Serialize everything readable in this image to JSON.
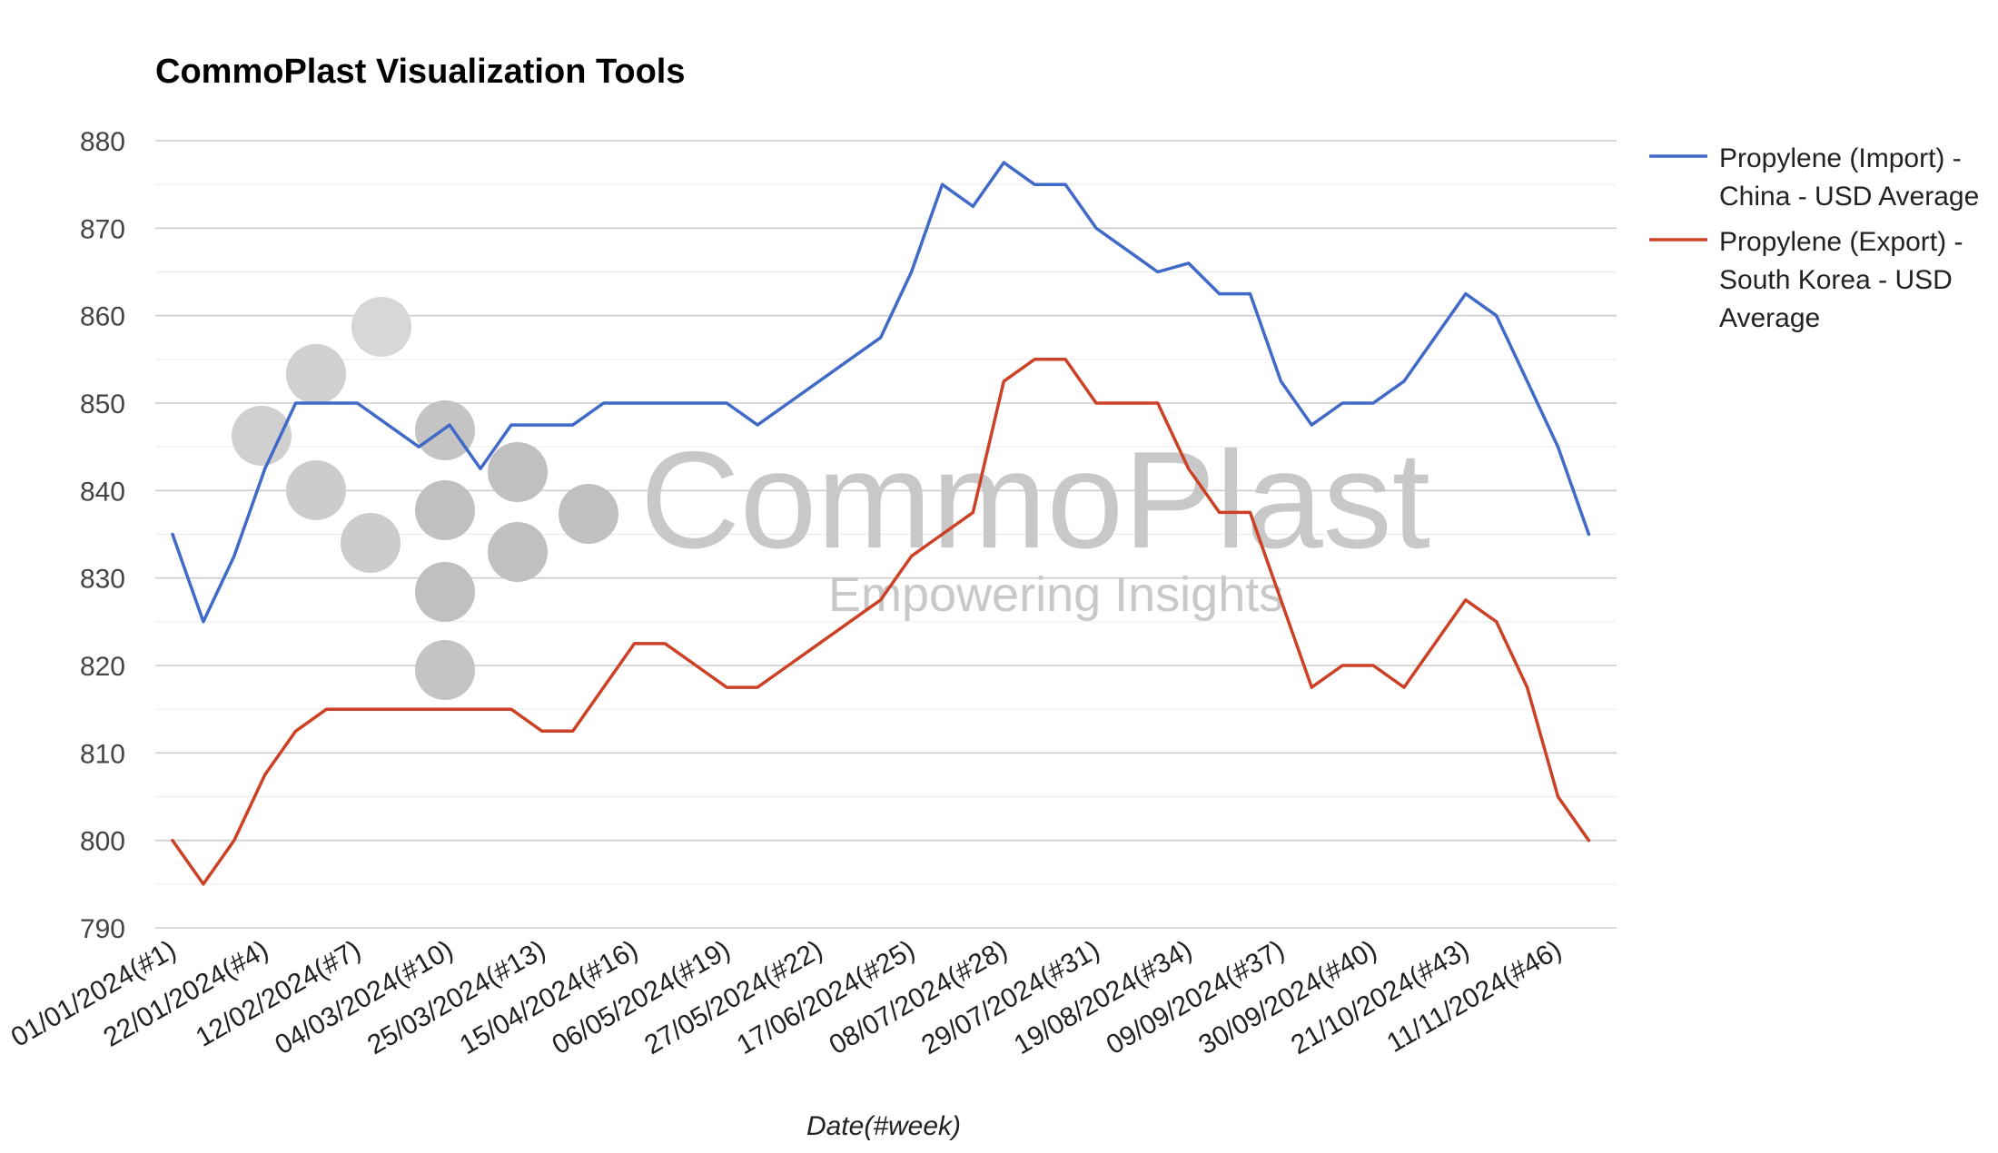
{
  "header": {
    "title": "CommoPlast Visualization Tools"
  },
  "watermark": {
    "brand": "CommoPlast",
    "tagline": "Empowering Insights",
    "icon": "dot-cluster-logo"
  },
  "colors": {
    "series_1": "#4169c8",
    "series_2": "#cc4125",
    "grid": "#cccccc",
    "minor_grid": "#eeeeee"
  },
  "chart_data": {
    "type": "line",
    "title": "CommoPlast Visualization Tools",
    "xlabel": "Date(#week)",
    "ylabel": "",
    "ylim": [
      790,
      880
    ],
    "yticks": [
      790,
      800,
      810,
      820,
      830,
      840,
      850,
      860,
      870,
      880
    ],
    "grid": true,
    "legend_position": "right",
    "x": [
      "01/01/2024(#1)",
      "08/01/2024(#2)",
      "15/01/2024(#3)",
      "22/01/2024(#4)",
      "29/01/2024(#5)",
      "05/02/2024(#6)",
      "12/02/2024(#7)",
      "19/02/2024(#8)",
      "26/02/2024(#9)",
      "04/03/2024(#10)",
      "11/03/2024(#11)",
      "18/03/2024(#12)",
      "25/03/2024(#13)",
      "01/04/2024(#14)",
      "08/04/2024(#15)",
      "15/04/2024(#16)",
      "22/04/2024(#17)",
      "29/04/2024(#18)",
      "06/05/2024(#19)",
      "13/05/2024(#20)",
      "20/05/2024(#21)",
      "27/05/2024(#22)",
      "03/06/2024(#23)",
      "10/06/2024(#24)",
      "17/06/2024(#25)",
      "24/06/2024(#26)",
      "01/07/2024(#27)",
      "08/07/2024(#28)",
      "15/07/2024(#29)",
      "22/07/2024(#30)",
      "29/07/2024(#31)",
      "05/08/2024(#32)",
      "12/08/2024(#33)",
      "19/08/2024(#34)",
      "26/08/2024(#35)",
      "02/09/2024(#36)",
      "09/09/2024(#37)",
      "16/09/2024(#38)",
      "23/09/2024(#39)",
      "30/09/2024(#40)",
      "07/10/2024(#41)",
      "14/10/2024(#42)",
      "21/10/2024(#43)",
      "28/10/2024(#44)",
      "04/11/2024(#45)",
      "11/11/2024(#46)",
      "18/11/2024(#47)"
    ],
    "xtick_labels": [
      "01/01/2024(#1)",
      "22/01/2024(#4)",
      "12/02/2024(#7)",
      "04/03/2024(#10)",
      "25/03/2024(#13)",
      "15/04/2024(#16)",
      "06/05/2024(#19)",
      "27/05/2024(#22)",
      "17/06/2024(#25)",
      "08/07/2024(#28)",
      "29/07/2024(#31)",
      "19/08/2024(#34)",
      "09/09/2024(#37)",
      "30/09/2024(#40)",
      "21/10/2024(#43)",
      "11/11/2024(#46)"
    ],
    "series": [
      {
        "name": "Propylene (Import) - China - USD Average",
        "legend_lines": [
          "Propylene (Import) -",
          "China - USD Average"
        ],
        "color": "#4169c8",
        "values": [
          835,
          825,
          832.5,
          842.5,
          850,
          850,
          850,
          847.5,
          845,
          847.5,
          842.5,
          847.5,
          847.5,
          847.5,
          850,
          850,
          850,
          850,
          850,
          847.5,
          850,
          852.5,
          855,
          857.5,
          865,
          875,
          872.5,
          877.5,
          875,
          875,
          870,
          867.5,
          865,
          866,
          862.5,
          862.5,
          852.5,
          847.5,
          850,
          850,
          852.5,
          857.5,
          862.5,
          860,
          852.5,
          845,
          835
        ]
      },
      {
        "name": "Propylene (Export) - South Korea - USD Average",
        "legend_lines": [
          "Propylene (Export) -",
          "South Korea - USD",
          "Average"
        ],
        "color": "#cc4125",
        "values": [
          800,
          795,
          800,
          807.5,
          812.5,
          815,
          815,
          815,
          815,
          815,
          815,
          815,
          812.5,
          812.5,
          817.5,
          822.5,
          822.5,
          820,
          817.5,
          817.5,
          820,
          822.5,
          825,
          827.5,
          832.5,
          835,
          837.5,
          852.5,
          855,
          855,
          850,
          850,
          850,
          842.5,
          837.5,
          837.5,
          827.5,
          817.5,
          820,
          820,
          817.5,
          822.5,
          827.5,
          825,
          817.5,
          805,
          800
        ]
      }
    ]
  }
}
